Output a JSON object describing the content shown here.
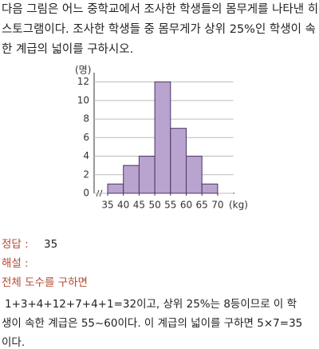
{
  "problem": {
    "lines": [
      "다음 그림은 어느 중학교에서 조사한 학생들의 몸무게를 나타낸 히",
      "스토그램이다. 조사한 학생들 중 몸무게가 상위 25%인 학생이 속",
      "한 계급의 넓이를 구하시오."
    ]
  },
  "chart_data": {
    "type": "histogram",
    "y_label": "(명)",
    "x_label": "(kg)",
    "bins": [
      35,
      40,
      45,
      50,
      55,
      60,
      65,
      70
    ],
    "values": [
      1,
      3,
      4,
      12,
      7,
      4,
      1
    ],
    "color": "#b9a3cf",
    "xlim": [
      35,
      75
    ],
    "xticks": [
      35,
      40,
      45,
      50,
      55,
      60,
      65,
      70
    ],
    "ylim": [
      0,
      13
    ],
    "yticks": [
      0,
      2,
      4,
      6,
      8,
      10,
      12
    ],
    "grid": true
  },
  "answer": {
    "label": "정답 :",
    "value": "35"
  },
  "solution": {
    "label": "해설 :",
    "heading": "전체 도수를 구하면",
    "lines": [
      "1+3+4+12+7+4+1=32이고, 상위 25%는 8등이므로 이 학",
      "생이 속한 계급은 55~60이다. 이 계급의 넓이를 구하면 5×7=35",
      "이다."
    ]
  }
}
